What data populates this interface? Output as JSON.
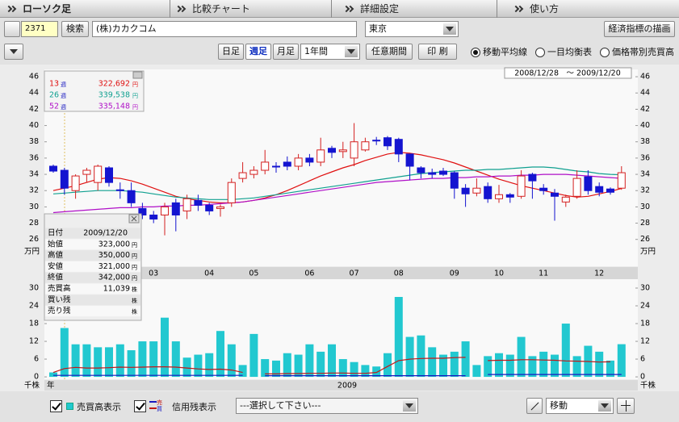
{
  "tabs": [
    "ローソク足",
    "比較チャート",
    "詳細設定",
    "使い方"
  ],
  "toolbar": {
    "code": "2371",
    "search": "検索",
    "company": "(株)カカクコム",
    "market": "東京",
    "economic_button": "経済指標の描画"
  },
  "period_bar": {
    "intervals": [
      {
        "label": "日足"
      },
      {
        "label": "週足",
        "active": true
      },
      {
        "label": "月足"
      }
    ],
    "range": "1年間",
    "custom_period": "任意期間",
    "print": "印 刷",
    "overlays": [
      {
        "label": "移動平均線",
        "selected": true
      },
      {
        "label": "一目均衡表",
        "selected": false
      },
      {
        "label": "価格帯別売買高",
        "selected": false
      }
    ]
  },
  "info_panel": {
    "rows": [
      {
        "label": "日付",
        "value": "2009/12/20"
      },
      {
        "label": "始値",
        "value": "323,000",
        "unit": "円"
      },
      {
        "label": "高値",
        "value": "350,000",
        "unit": "円"
      },
      {
        "label": "安値",
        "value": "321,000",
        "unit": "円"
      },
      {
        "label": "終値",
        "value": "342,000",
        "unit": "円"
      },
      {
        "label": "売買高",
        "value": "11,039",
        "unit": "株"
      },
      {
        "label": "買い残",
        "unit": "株"
      },
      {
        "label": "売り残",
        "unit": "株"
      }
    ]
  },
  "chart_data": [
    {
      "type": "candlestick",
      "date_range": "2008/12/28　～ 2009/12/20",
      "unit": "万円",
      "up_color": "#d42020",
      "down_color": "#1414d0",
      "categories": [
        null,
        null,
        null,
        null,
        null,
        null,
        null,
        null,
        null,
        "03",
        null,
        null,
        null,
        null,
        "04",
        null,
        null,
        null,
        "05",
        null,
        null,
        null,
        null,
        "06",
        null,
        null,
        null,
        "07",
        null,
        null,
        null,
        "08",
        null,
        null,
        null,
        null,
        "09",
        null,
        null,
        null,
        "10",
        null,
        null,
        null,
        "11",
        null,
        null,
        null,
        null,
        "12",
        null,
        null
      ],
      "open": [
        35,
        34.5,
        32,
        34,
        33,
        34.8,
        32.1,
        32,
        29.8,
        29,
        29,
        30.5,
        29.5,
        30.8,
        30.2,
        29.8,
        30.5,
        33.5,
        34,
        34.5,
        35,
        35.5,
        35,
        36,
        35.5,
        37.2,
        36.8,
        36,
        37,
        38.2,
        38.5,
        38.3,
        36.5,
        34.8,
        34.2,
        34.4,
        34.2,
        32.3,
        31.7,
        32.5,
        31,
        31.5,
        31.3,
        34,
        32.3,
        31.7,
        30.6,
        31.3,
        33.7,
        32.5,
        32.2,
        32.3
      ],
      "high": [
        35.2,
        34.8,
        34,
        34.8,
        35.2,
        35,
        33,
        33,
        30.5,
        29.5,
        30.5,
        31,
        31.5,
        31.5,
        30.5,
        30.3,
        33.5,
        35.5,
        35,
        37,
        35.5,
        36.2,
        36.5,
        36.5,
        38.5,
        37.5,
        38,
        40.3,
        38.5,
        38.6,
        38.7,
        38.5,
        36.5,
        35,
        34.7,
        34.8,
        34.4,
        32.8,
        33.5,
        33,
        32.7,
        31.7,
        34.5,
        34.2,
        32.8,
        32.2,
        31.5,
        34.5,
        34.5,
        33,
        32.4,
        35
      ],
      "low": [
        34.2,
        31.5,
        31,
        33,
        32,
        32.5,
        31,
        30,
        28.5,
        28,
        26.5,
        27,
        28.5,
        29.5,
        29,
        28.8,
        30,
        33,
        33.5,
        34,
        34.2,
        34.5,
        34.5,
        35,
        35,
        36,
        36,
        35,
        36.8,
        37.6,
        37,
        35.5,
        33.3,
        33.5,
        33.5,
        33.8,
        31,
        30,
        31.3,
        30.5,
        30.5,
        30.5,
        31,
        31,
        31.5,
        28.3,
        30,
        31,
        31.5,
        31.3,
        31.5,
        32.1
      ],
      "close": [
        34.4,
        32.3,
        33.8,
        34.5,
        35,
        33,
        32,
        30.5,
        29,
        28.5,
        30,
        29,
        31,
        30.2,
        29.5,
        30,
        33,
        34.2,
        34.5,
        35.5,
        35,
        35,
        36,
        35.5,
        37,
        36.7,
        37,
        38,
        38,
        38.2,
        37.5,
        36.5,
        35,
        34.2,
        34,
        34,
        32.3,
        31.6,
        32.3,
        31,
        31.5,
        31.2,
        33.8,
        33.2,
        32,
        31.3,
        31.2,
        33.5,
        32,
        31.8,
        31.8,
        34.2
      ],
      "ylim": [
        22.7,
        46.9
      ],
      "yticks": [
        26,
        28,
        30,
        32,
        34,
        36,
        38,
        40,
        42,
        44,
        46
      ],
      "series": [
        {
          "name": "13",
          "period_unit": "週",
          "legend_value": "322,692",
          "legend_unit": "円",
          "color": "#e01010",
          "values": [
            32.0,
            32.3,
            32.6,
            33.0,
            33.4,
            33.6,
            33.5,
            33.2,
            32.8,
            32.3,
            31.8,
            31.3,
            31.0,
            30.8,
            30.6,
            30.5,
            30.5,
            30.6,
            30.8,
            31.1,
            31.5,
            32.0,
            32.6,
            33.2,
            33.8,
            34.3,
            34.8,
            35.2,
            35.7,
            36.1,
            36.5,
            36.7,
            36.6,
            36.4,
            36.1,
            35.8,
            35.4,
            34.9,
            34.4,
            33.9,
            33.4,
            33.0,
            32.6,
            32.3,
            32.0,
            31.7,
            31.4,
            31.2,
            31.3,
            31.6,
            31.9,
            32.27
          ]
        },
        {
          "name": "26",
          "period_unit": "週",
          "legend_value": "339,538",
          "legend_unit": "円",
          "color": "#10a090",
          "values": [
            31.6,
            31.7,
            31.8,
            31.9,
            32.0,
            32.0,
            32.0,
            31.9,
            31.8,
            31.6,
            31.4,
            31.2,
            31.1,
            31.0,
            30.9,
            30.9,
            30.9,
            31.0,
            31.1,
            31.3,
            31.5,
            31.7,
            31.9,
            32.1,
            32.3,
            32.5,
            32.7,
            32.9,
            33.1,
            33.3,
            33.5,
            33.7,
            33.9,
            34.1,
            34.2,
            34.3,
            34.4,
            34.5,
            34.5,
            34.6,
            34.6,
            34.7,
            34.8,
            34.9,
            34.9,
            34.8,
            34.6,
            34.4,
            34.3,
            34.1,
            34.0,
            33.95
          ]
        },
        {
          "name": "52",
          "period_unit": "週",
          "legend_value": "335,148",
          "legend_unit": "円",
          "color": "#b010c8",
          "values": [
            29.3,
            29.4,
            29.5,
            29.6,
            29.7,
            29.8,
            29.9,
            29.9,
            30.0,
            30.0,
            30.1,
            30.1,
            30.2,
            30.2,
            30.3,
            30.4,
            30.5,
            30.6,
            30.8,
            31.0,
            31.2,
            31.4,
            31.6,
            31.8,
            32.0,
            32.2,
            32.4,
            32.6,
            32.8,
            33.0,
            33.1,
            33.2,
            33.3,
            33.4,
            33.5,
            33.5,
            33.6,
            33.6,
            33.7,
            33.7,
            33.8,
            33.8,
            33.9,
            33.9,
            34.0,
            34.0,
            34.0,
            33.9,
            33.8,
            33.7,
            33.6,
            33.51
          ]
        }
      ]
    },
    {
      "type": "bar",
      "unit": "千株",
      "year_label": "年",
      "year": "2009",
      "color": "#22c8d0",
      "values": [
        1.5,
        16.5,
        11,
        11,
        10,
        10,
        11,
        9,
        12,
        12,
        20,
        12,
        6.5,
        7.5,
        8,
        15.5,
        11,
        4,
        14.5,
        6,
        5.5,
        8,
        7.5,
        11,
        8.5,
        11,
        6,
        5,
        4,
        3.5,
        8,
        27,
        13.5,
        14,
        10,
        7.5,
        8.5,
        12,
        4,
        7,
        8,
        7.5,
        13.5,
        7,
        8.5,
        7.5,
        18,
        7,
        10.5,
        8.5,
        5.5,
        11.039
      ],
      "ylim": [
        -0.8,
        33
      ],
      "yticks": [
        0,
        6,
        12,
        18,
        24,
        30
      ],
      "lines": [
        {
          "color": "#c01818",
          "values": [
            1.5,
            2.8,
            3.2,
            3,
            3,
            3.1,
            3.3,
            3.2,
            3.3,
            3.4,
            3.4,
            3.3,
            3.0,
            2.7,
            2.5,
            2.6,
            2.3,
            1.5,
            null,
            1.0,
            1.0,
            1.1,
            1.1,
            1.2,
            1.2,
            1.3,
            1.3,
            1.2,
            1.2,
            1.5,
            3.5,
            5.5,
            6.0,
            6.2,
            6.3,
            6.3,
            6.5,
            6.6,
            null,
            5.5,
            5.6,
            5.6,
            5.8,
            5.8,
            5.7,
            5.6,
            5.4,
            5.3,
            5.2,
            5.0,
            5.1,
            null
          ]
        },
        {
          "color": "#1818c0",
          "values": [
            0.5,
            0.5,
            0.5,
            0.5,
            0.5,
            0.5,
            0.5,
            0.5,
            0.5,
            0.5,
            0.5,
            0.5,
            0.5,
            0.5,
            0.5,
            0.5,
            0.5,
            0.5,
            null,
            0.4,
            0.4,
            0.4,
            0.4,
            0.4,
            0.4,
            0.4,
            0.4,
            0.4,
            0.4,
            0.4,
            0.4,
            0.4,
            0.4,
            0.4,
            0.4,
            0.4,
            0.4,
            0.4,
            null,
            0.8,
            0.8,
            0.8,
            0.8,
            0.8,
            0.8,
            0.8,
            0.8,
            0.8,
            0.8,
            0.8,
            0.8,
            0.8
          ]
        }
      ]
    }
  ],
  "bottom_bar": {
    "volume_toggle": "売買高表示",
    "credit_icon": [
      "売",
      "買"
    ],
    "credit_toggle": "信用残表示",
    "select": "---選択して下さい---",
    "tool": "移動"
  }
}
